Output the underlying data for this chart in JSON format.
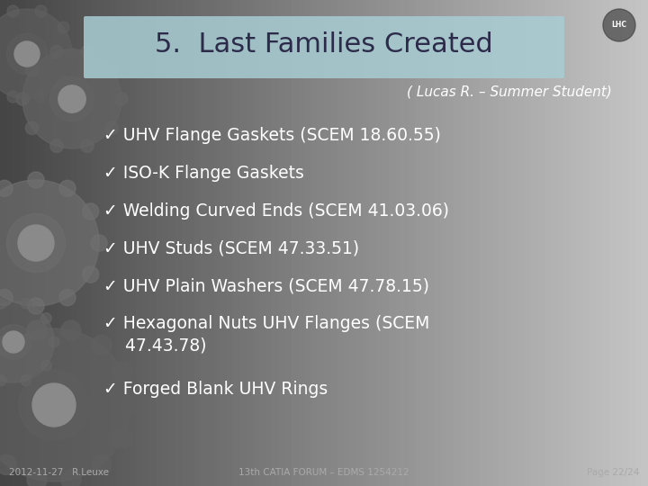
{
  "title": "5.  Last Families Created",
  "subtitle": "( Lucas R. – Summer Student)",
  "bullet_items": [
    "✓ UHV Flange Gaskets (SCEM 18.60.55)",
    "✓ ISO-K Flange Gaskets",
    "✓ Welding Curved Ends (SCEM 41.03.06)",
    "✓ UHV Studs (SCEM 47.33.51)",
    "✓ UHV Plain Washers (SCEM 47.78.15)",
    "✓ Hexagonal Nuts UHV Flanges (SCEM\n    47.43.78)",
    "✓ Forged Blank UHV Rings"
  ],
  "footer_left": "2012-11-27   R.Leuxe",
  "footer_center": "13th CATIA FORUM – EDMS 1254212",
  "footer_right": "Page 22/24",
  "bg_color": "#8a8a8a",
  "title_box_color_left": "#a8d4d8",
  "title_box_color_right": "#7ab0b8",
  "title_text_color": "#2c2c4a",
  "subtitle_color": "#ffffff",
  "bullet_color": "#ffffff",
  "footer_color": "#aaaaaa",
  "gear_color": "#707070"
}
